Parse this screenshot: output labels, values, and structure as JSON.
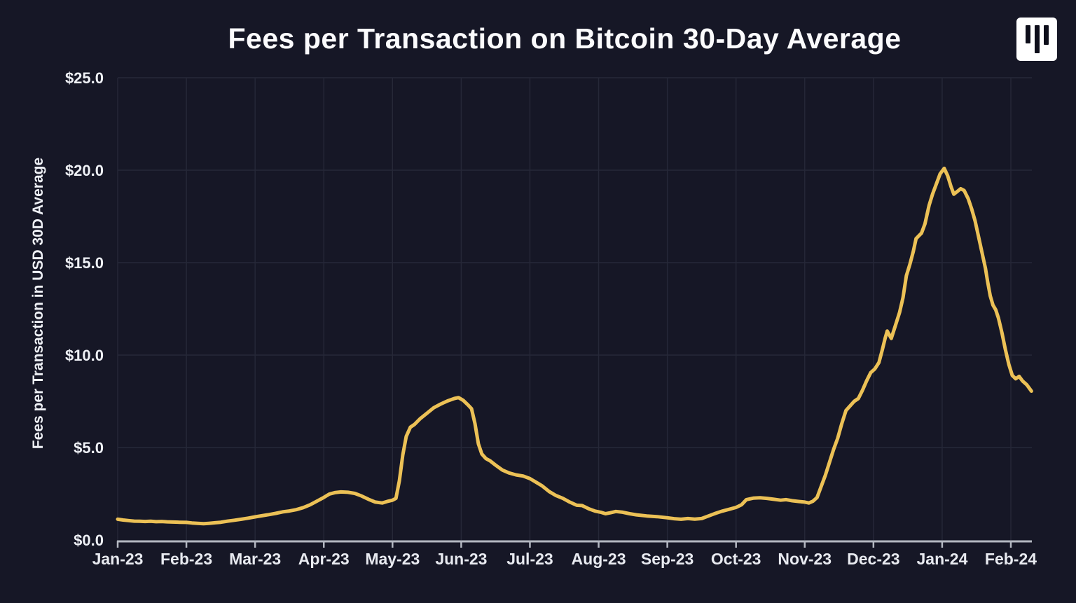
{
  "header": {
    "logo_icon": "pantera-logo-icon"
  },
  "chart_data": {
    "type": "line",
    "title": "Fees per Transaction on Bitcoin 30-Day Average",
    "y_axis_title": "Fees per Transaction in USD 30D Average",
    "xlabel": "",
    "ylabel": "Fees per Transaction in USD 30D Average",
    "y_min": 0,
    "y_max": 25,
    "grid": true,
    "legend": "none",
    "colors": {
      "background": "#161726",
      "gridline": "#262838",
      "axis_line": "#b4b8c2",
      "tick_text": "#eef0f5",
      "line": "#ecc156"
    },
    "y_ticks": [
      {
        "label": "$0.0",
        "value": 0
      },
      {
        "label": "$5.0",
        "value": 5
      },
      {
        "label": "$10.0",
        "value": 10
      },
      {
        "label": "$15.0",
        "value": 15
      },
      {
        "label": "$20.0",
        "value": 20
      },
      {
        "label": "$25.0",
        "value": 25
      }
    ],
    "x_ticks": [
      {
        "label": "Jan-23",
        "m": 0
      },
      {
        "label": "Feb-23",
        "m": 1
      },
      {
        "label": "Mar-23",
        "m": 2
      },
      {
        "label": "Apr-23",
        "m": 3
      },
      {
        "label": "May-23",
        "m": 4
      },
      {
        "label": "Jun-23",
        "m": 5
      },
      {
        "label": "Jul-23",
        "m": 6
      },
      {
        "label": "Aug-23",
        "m": 7
      },
      {
        "label": "Sep-23",
        "m": 8
      },
      {
        "label": "Oct-23",
        "m": 9
      },
      {
        "label": "Nov-23",
        "m": 10
      },
      {
        "label": "Dec-23",
        "m": 11
      },
      {
        "label": "Jan-24",
        "m": 12
      },
      {
        "label": "Feb-24",
        "m": 13
      }
    ],
    "series": [
      {
        "name": "Bitcoin fees per transaction, 30-day average (USD)",
        "color": "#ecc156",
        "points": [
          [
            0.0,
            1.12
          ],
          [
            0.08,
            1.08
          ],
          [
            0.16,
            1.05
          ],
          [
            0.24,
            1.02
          ],
          [
            0.32,
            1.01
          ],
          [
            0.4,
            1.0
          ],
          [
            0.48,
            1.01
          ],
          [
            0.56,
            0.99
          ],
          [
            0.64,
            1.0
          ],
          [
            0.72,
            0.98
          ],
          [
            0.8,
            0.97
          ],
          [
            0.9,
            0.96
          ],
          [
            1.0,
            0.95
          ],
          [
            1.08,
            0.92
          ],
          [
            1.16,
            0.9
          ],
          [
            1.25,
            0.88
          ],
          [
            1.33,
            0.9
          ],
          [
            1.42,
            0.93
          ],
          [
            1.5,
            0.96
          ],
          [
            1.6,
            1.02
          ],
          [
            1.7,
            1.07
          ],
          [
            1.8,
            1.12
          ],
          [
            1.9,
            1.18
          ],
          [
            2.0,
            1.25
          ],
          [
            2.1,
            1.31
          ],
          [
            2.2,
            1.37
          ],
          [
            2.3,
            1.44
          ],
          [
            2.4,
            1.52
          ],
          [
            2.5,
            1.57
          ],
          [
            2.6,
            1.64
          ],
          [
            2.7,
            1.75
          ],
          [
            2.8,
            1.9
          ],
          [
            2.9,
            2.1
          ],
          [
            3.0,
            2.3
          ],
          [
            3.08,
            2.48
          ],
          [
            3.16,
            2.56
          ],
          [
            3.25,
            2.6
          ],
          [
            3.35,
            2.58
          ],
          [
            3.45,
            2.52
          ],
          [
            3.55,
            2.38
          ],
          [
            3.65,
            2.2
          ],
          [
            3.75,
            2.05
          ],
          [
            3.85,
            2.0
          ],
          [
            3.92,
            2.08
          ],
          [
            4.0,
            2.15
          ],
          [
            4.05,
            2.25
          ],
          [
            4.1,
            3.2
          ],
          [
            4.15,
            4.6
          ],
          [
            4.2,
            5.6
          ],
          [
            4.26,
            6.1
          ],
          [
            4.32,
            6.25
          ],
          [
            4.4,
            6.55
          ],
          [
            4.5,
            6.85
          ],
          [
            4.6,
            7.15
          ],
          [
            4.7,
            7.35
          ],
          [
            4.8,
            7.52
          ],
          [
            4.9,
            7.65
          ],
          [
            4.96,
            7.7
          ],
          [
            5.03,
            7.55
          ],
          [
            5.1,
            7.3
          ],
          [
            5.15,
            7.1
          ],
          [
            5.2,
            6.3
          ],
          [
            5.25,
            5.2
          ],
          [
            5.3,
            4.65
          ],
          [
            5.36,
            4.4
          ],
          [
            5.42,
            4.28
          ],
          [
            5.5,
            4.05
          ],
          [
            5.6,
            3.78
          ],
          [
            5.7,
            3.62
          ],
          [
            5.8,
            3.52
          ],
          [
            5.9,
            3.46
          ],
          [
            6.0,
            3.32
          ],
          [
            6.1,
            3.1
          ],
          [
            6.18,
            2.92
          ],
          [
            6.28,
            2.62
          ],
          [
            6.38,
            2.4
          ],
          [
            6.48,
            2.25
          ],
          [
            6.58,
            2.05
          ],
          [
            6.68,
            1.88
          ],
          [
            6.76,
            1.86
          ],
          [
            6.86,
            1.68
          ],
          [
            6.95,
            1.56
          ],
          [
            7.03,
            1.5
          ],
          [
            7.1,
            1.42
          ],
          [
            7.17,
            1.47
          ],
          [
            7.25,
            1.54
          ],
          [
            7.35,
            1.5
          ],
          [
            7.45,
            1.42
          ],
          [
            7.55,
            1.36
          ],
          [
            7.7,
            1.3
          ],
          [
            7.85,
            1.26
          ],
          [
            8.0,
            1.2
          ],
          [
            8.1,
            1.15
          ],
          [
            8.2,
            1.12
          ],
          [
            8.3,
            1.16
          ],
          [
            8.4,
            1.13
          ],
          [
            8.5,
            1.16
          ],
          [
            8.6,
            1.3
          ],
          [
            8.7,
            1.44
          ],
          [
            8.8,
            1.56
          ],
          [
            8.9,
            1.66
          ],
          [
            9.0,
            1.76
          ],
          [
            9.08,
            1.9
          ],
          [
            9.15,
            2.18
          ],
          [
            9.25,
            2.26
          ],
          [
            9.35,
            2.28
          ],
          [
            9.45,
            2.25
          ],
          [
            9.55,
            2.2
          ],
          [
            9.65,
            2.15
          ],
          [
            9.73,
            2.18
          ],
          [
            9.82,
            2.12
          ],
          [
            9.92,
            2.08
          ],
          [
            10.0,
            2.05
          ],
          [
            10.06,
            2.0
          ],
          [
            10.12,
            2.1
          ],
          [
            10.18,
            2.3
          ],
          [
            10.24,
            2.9
          ],
          [
            10.3,
            3.5
          ],
          [
            10.36,
            4.2
          ],
          [
            10.42,
            4.9
          ],
          [
            10.48,
            5.5
          ],
          [
            10.54,
            6.3
          ],
          [
            10.6,
            7.0
          ],
          [
            10.66,
            7.25
          ],
          [
            10.72,
            7.5
          ],
          [
            10.78,
            7.65
          ],
          [
            10.84,
            8.1
          ],
          [
            10.9,
            8.6
          ],
          [
            10.96,
            9.05
          ],
          [
            11.02,
            9.25
          ],
          [
            11.08,
            9.6
          ],
          [
            11.13,
            10.3
          ],
          [
            11.17,
            10.9
          ],
          [
            11.2,
            11.3
          ],
          [
            11.26,
            10.9
          ],
          [
            11.32,
            11.6
          ],
          [
            11.38,
            12.3
          ],
          [
            11.43,
            13.1
          ],
          [
            11.48,
            14.3
          ],
          [
            11.53,
            14.9
          ],
          [
            11.58,
            15.6
          ],
          [
            11.62,
            16.3
          ],
          [
            11.66,
            16.45
          ],
          [
            11.7,
            16.6
          ],
          [
            11.75,
            17.1
          ],
          [
            11.81,
            18.1
          ],
          [
            11.86,
            18.7
          ],
          [
            11.91,
            19.2
          ],
          [
            11.97,
            19.8
          ],
          [
            12.03,
            20.1
          ],
          [
            12.08,
            19.7
          ],
          [
            12.13,
            19.1
          ],
          [
            12.17,
            18.7
          ],
          [
            12.22,
            18.85
          ],
          [
            12.27,
            19.0
          ],
          [
            12.32,
            18.9
          ],
          [
            12.38,
            18.45
          ],
          [
            12.43,
            17.9
          ],
          [
            12.48,
            17.25
          ],
          [
            12.53,
            16.4
          ],
          [
            12.58,
            15.55
          ],
          [
            12.63,
            14.7
          ],
          [
            12.66,
            14.0
          ],
          [
            12.7,
            13.2
          ],
          [
            12.74,
            12.7
          ],
          [
            12.78,
            12.45
          ],
          [
            12.82,
            12.0
          ],
          [
            12.87,
            11.2
          ],
          [
            12.92,
            10.3
          ],
          [
            12.97,
            9.5
          ],
          [
            13.02,
            8.9
          ],
          [
            13.07,
            8.72
          ],
          [
            13.12,
            8.85
          ],
          [
            13.17,
            8.6
          ],
          [
            13.23,
            8.4
          ],
          [
            13.3,
            8.05
          ]
        ]
      }
    ]
  }
}
